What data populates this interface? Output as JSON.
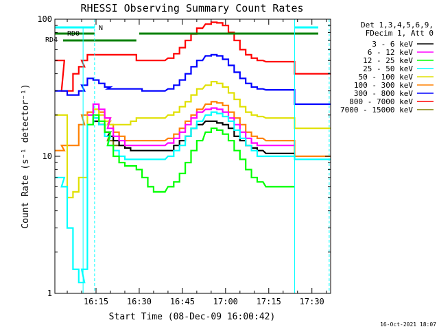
{
  "title": "RHESSI Observing Summary Count Rates",
  "ylabel": "Count Rate (s⁻¹ detector⁻¹)",
  "xlabel": "Start Time (08-Dec-09 16:00:42)",
  "timestamp": "16-Oct-2021 18:07",
  "legend_header": [
    "Det 1,3,4,5,6,9,",
    "FDecim 1, Att 0"
  ],
  "ytick_labels": [
    "1",
    "10",
    "100"
  ],
  "xtick_labels": [
    "16:15",
    "16:30",
    "16:45",
    "17:00",
    "17:15",
    "17:30"
  ],
  "annotations": {
    "n": "N",
    "rd0": "RD0",
    "rd4": "RD4"
  },
  "colors": {
    "3-6": "#000000",
    "6-12": "#ff00ff",
    "12-25": "#00ff00",
    "25-50": "#00ffff",
    "50-100": "#e0e000",
    "100-300": "#ff8000",
    "300-800": "#0000ff",
    "800-7000": "#ff0000",
    "7000-15000": "#808000",
    "flag_n": "#00ffff",
    "flag_rd": "#008000"
  },
  "chart_data": {
    "type": "line",
    "title": "RHESSI Observing Summary Count Rates",
    "xlabel": "Start Time (08-Dec-09 16:00:42)",
    "ylabel": "Count Rate (s⁻¹ detector⁻¹)",
    "yscale": "log",
    "ylim": [
      1,
      100
    ],
    "xlim": [
      "16:00:42",
      "17:36:30"
    ],
    "x": [
      "16:01",
      "16:03",
      "16:04",
      "16:06",
      "16:08",
      "16:10",
      "16:11",
      "16:13",
      "16:15",
      "16:17",
      "16:19",
      "16:20",
      "16:22",
      "16:24",
      "16:26",
      "16:28",
      "16:30",
      "16:32",
      "16:34",
      "16:36",
      "16:38",
      "16:41",
      "16:43",
      "16:45",
      "16:47",
      "16:49",
      "16:51",
      "16:54",
      "16:56",
      "16:58",
      "17:00",
      "17:02",
      "17:04",
      "17:06",
      "17:08",
      "17:10",
      "17:12",
      "17:15",
      "17:17",
      "17:19",
      "17:21",
      "17:23",
      "17:25",
      "17:28",
      "17:30",
      "17:32",
      "17:34",
      "17:36"
    ],
    "series": [
      {
        "name": "3 - 6 keV",
        "values": [
          null,
          null,
          null,
          null,
          null,
          null,
          null,
          null,
          18,
          17,
          15,
          14,
          13,
          12,
          11.5,
          11,
          11,
          11,
          11,
          11,
          11,
          11,
          12,
          13,
          14,
          16,
          17,
          18,
          18,
          17.5,
          17,
          16,
          14,
          13,
          12,
          11.5,
          11,
          10.5,
          10.5,
          10.5,
          10.5,
          10.5,
          null,
          null,
          null,
          null,
          null,
          null
        ]
      },
      {
        "name": "6 - 12 keV",
        "values": [
          null,
          null,
          null,
          null,
          null,
          null,
          null,
          20,
          24,
          22,
          19,
          16,
          14,
          13,
          12,
          12,
          12,
          12,
          12,
          12,
          12,
          12.5,
          13.5,
          15,
          17,
          19,
          21,
          22,
          22.5,
          22,
          21,
          19,
          17,
          15,
          13.5,
          12.5,
          12,
          12,
          12,
          12,
          12,
          12,
          null,
          null,
          null,
          null,
          null,
          null
        ]
      },
      {
        "name": "12 - 25 keV",
        "values": [
          null,
          null,
          null,
          null,
          null,
          null,
          null,
          17,
          20,
          18,
          15,
          12,
          10,
          9,
          8.5,
          8.5,
          8,
          7,
          6,
          5.5,
          5.5,
          6,
          6.5,
          7.5,
          9,
          11,
          13,
          15,
          16,
          15.5,
          14.5,
          13,
          11,
          9.5,
          8,
          7,
          6.5,
          6,
          6,
          6,
          6,
          6,
          null,
          null,
          null,
          null,
          null,
          null
        ]
      },
      {
        "name": "25 - 50 keV",
        "values": [
          7,
          7,
          6,
          3,
          1.5,
          1.2,
          1.5,
          17,
          19,
          17,
          14,
          12,
          11,
          10,
          9.5,
          9.5,
          9.5,
          9.5,
          9.5,
          9.5,
          9.5,
          10,
          11,
          12,
          14,
          16,
          18,
          20,
          21,
          20.5,
          19.5,
          18,
          15.5,
          13.5,
          12,
          11,
          10,
          10,
          10,
          10,
          10,
          10,
          9.5,
          9.5,
          9.5,
          9.5,
          9.5,
          9.5
        ]
      },
      {
        "name": "50 - 100 keV",
        "values": [
          20,
          20,
          20,
          5,
          5.5,
          7,
          7,
          20,
          22,
          20,
          18,
          17,
          17,
          17,
          17,
          18,
          19,
          19,
          19,
          19,
          19,
          20,
          21,
          23,
          25,
          28,
          31,
          33,
          35,
          34,
          32,
          29,
          26,
          23,
          21,
          20,
          19.5,
          19,
          19,
          19,
          19,
          19,
          16,
          16,
          16,
          16,
          16,
          16
        ]
      },
      {
        "name": "100 - 300 keV",
        "values": [
          11,
          11,
          12,
          12,
          12,
          17,
          20,
          21,
          22,
          21,
          19,
          17,
          15,
          14,
          13,
          13,
          13,
          13,
          13,
          13,
          13,
          13.5,
          14.5,
          16,
          18,
          20,
          22,
          24,
          25,
          24.5,
          23.5,
          21,
          19,
          17,
          15,
          14,
          13.5,
          13,
          13,
          13,
          13,
          13,
          10,
          10,
          10,
          10,
          10,
          10
        ]
      },
      {
        "name": "300 - 800 keV",
        "values": [
          30,
          30,
          30,
          28,
          28,
          30,
          33,
          37,
          36,
          34,
          32,
          31,
          31,
          31,
          31,
          31,
          31,
          30,
          30,
          30,
          30,
          31,
          33,
          36,
          40,
          45,
          50,
          54,
          55,
          54,
          51,
          46,
          41,
          37,
          34,
          32,
          31,
          30.5,
          30.5,
          30.5,
          30.5,
          30.5,
          24,
          24,
          24,
          24,
          24,
          24
        ]
      },
      {
        "name": "800 - 7000 keV",
        "values": [
          50,
          50,
          30,
          30,
          40,
          45,
          50,
          55,
          55,
          55,
          55,
          55,
          55,
          55,
          55,
          55,
          50,
          50,
          50,
          50,
          50,
          52,
          56,
          62,
          70,
          78,
          86,
          92,
          95,
          94,
          90,
          80,
          70,
          60,
          55,
          52,
          50,
          49,
          49,
          49,
          49,
          49,
          40,
          40,
          40,
          40,
          40,
          40
        ]
      },
      {
        "name": "7000 - 15000 keV",
        "values": [
          null,
          null,
          null,
          null,
          null,
          null,
          null,
          null,
          19,
          17,
          15,
          13,
          12,
          12,
          null,
          null,
          null,
          null,
          null,
          null,
          null,
          null,
          null,
          null,
          null,
          null,
          null,
          null,
          null,
          null,
          null,
          null,
          null,
          null,
          null,
          null,
          null,
          null,
          null,
          null,
          null,
          null,
          null,
          null,
          null,
          null,
          null,
          null
        ]
      }
    ]
  }
}
